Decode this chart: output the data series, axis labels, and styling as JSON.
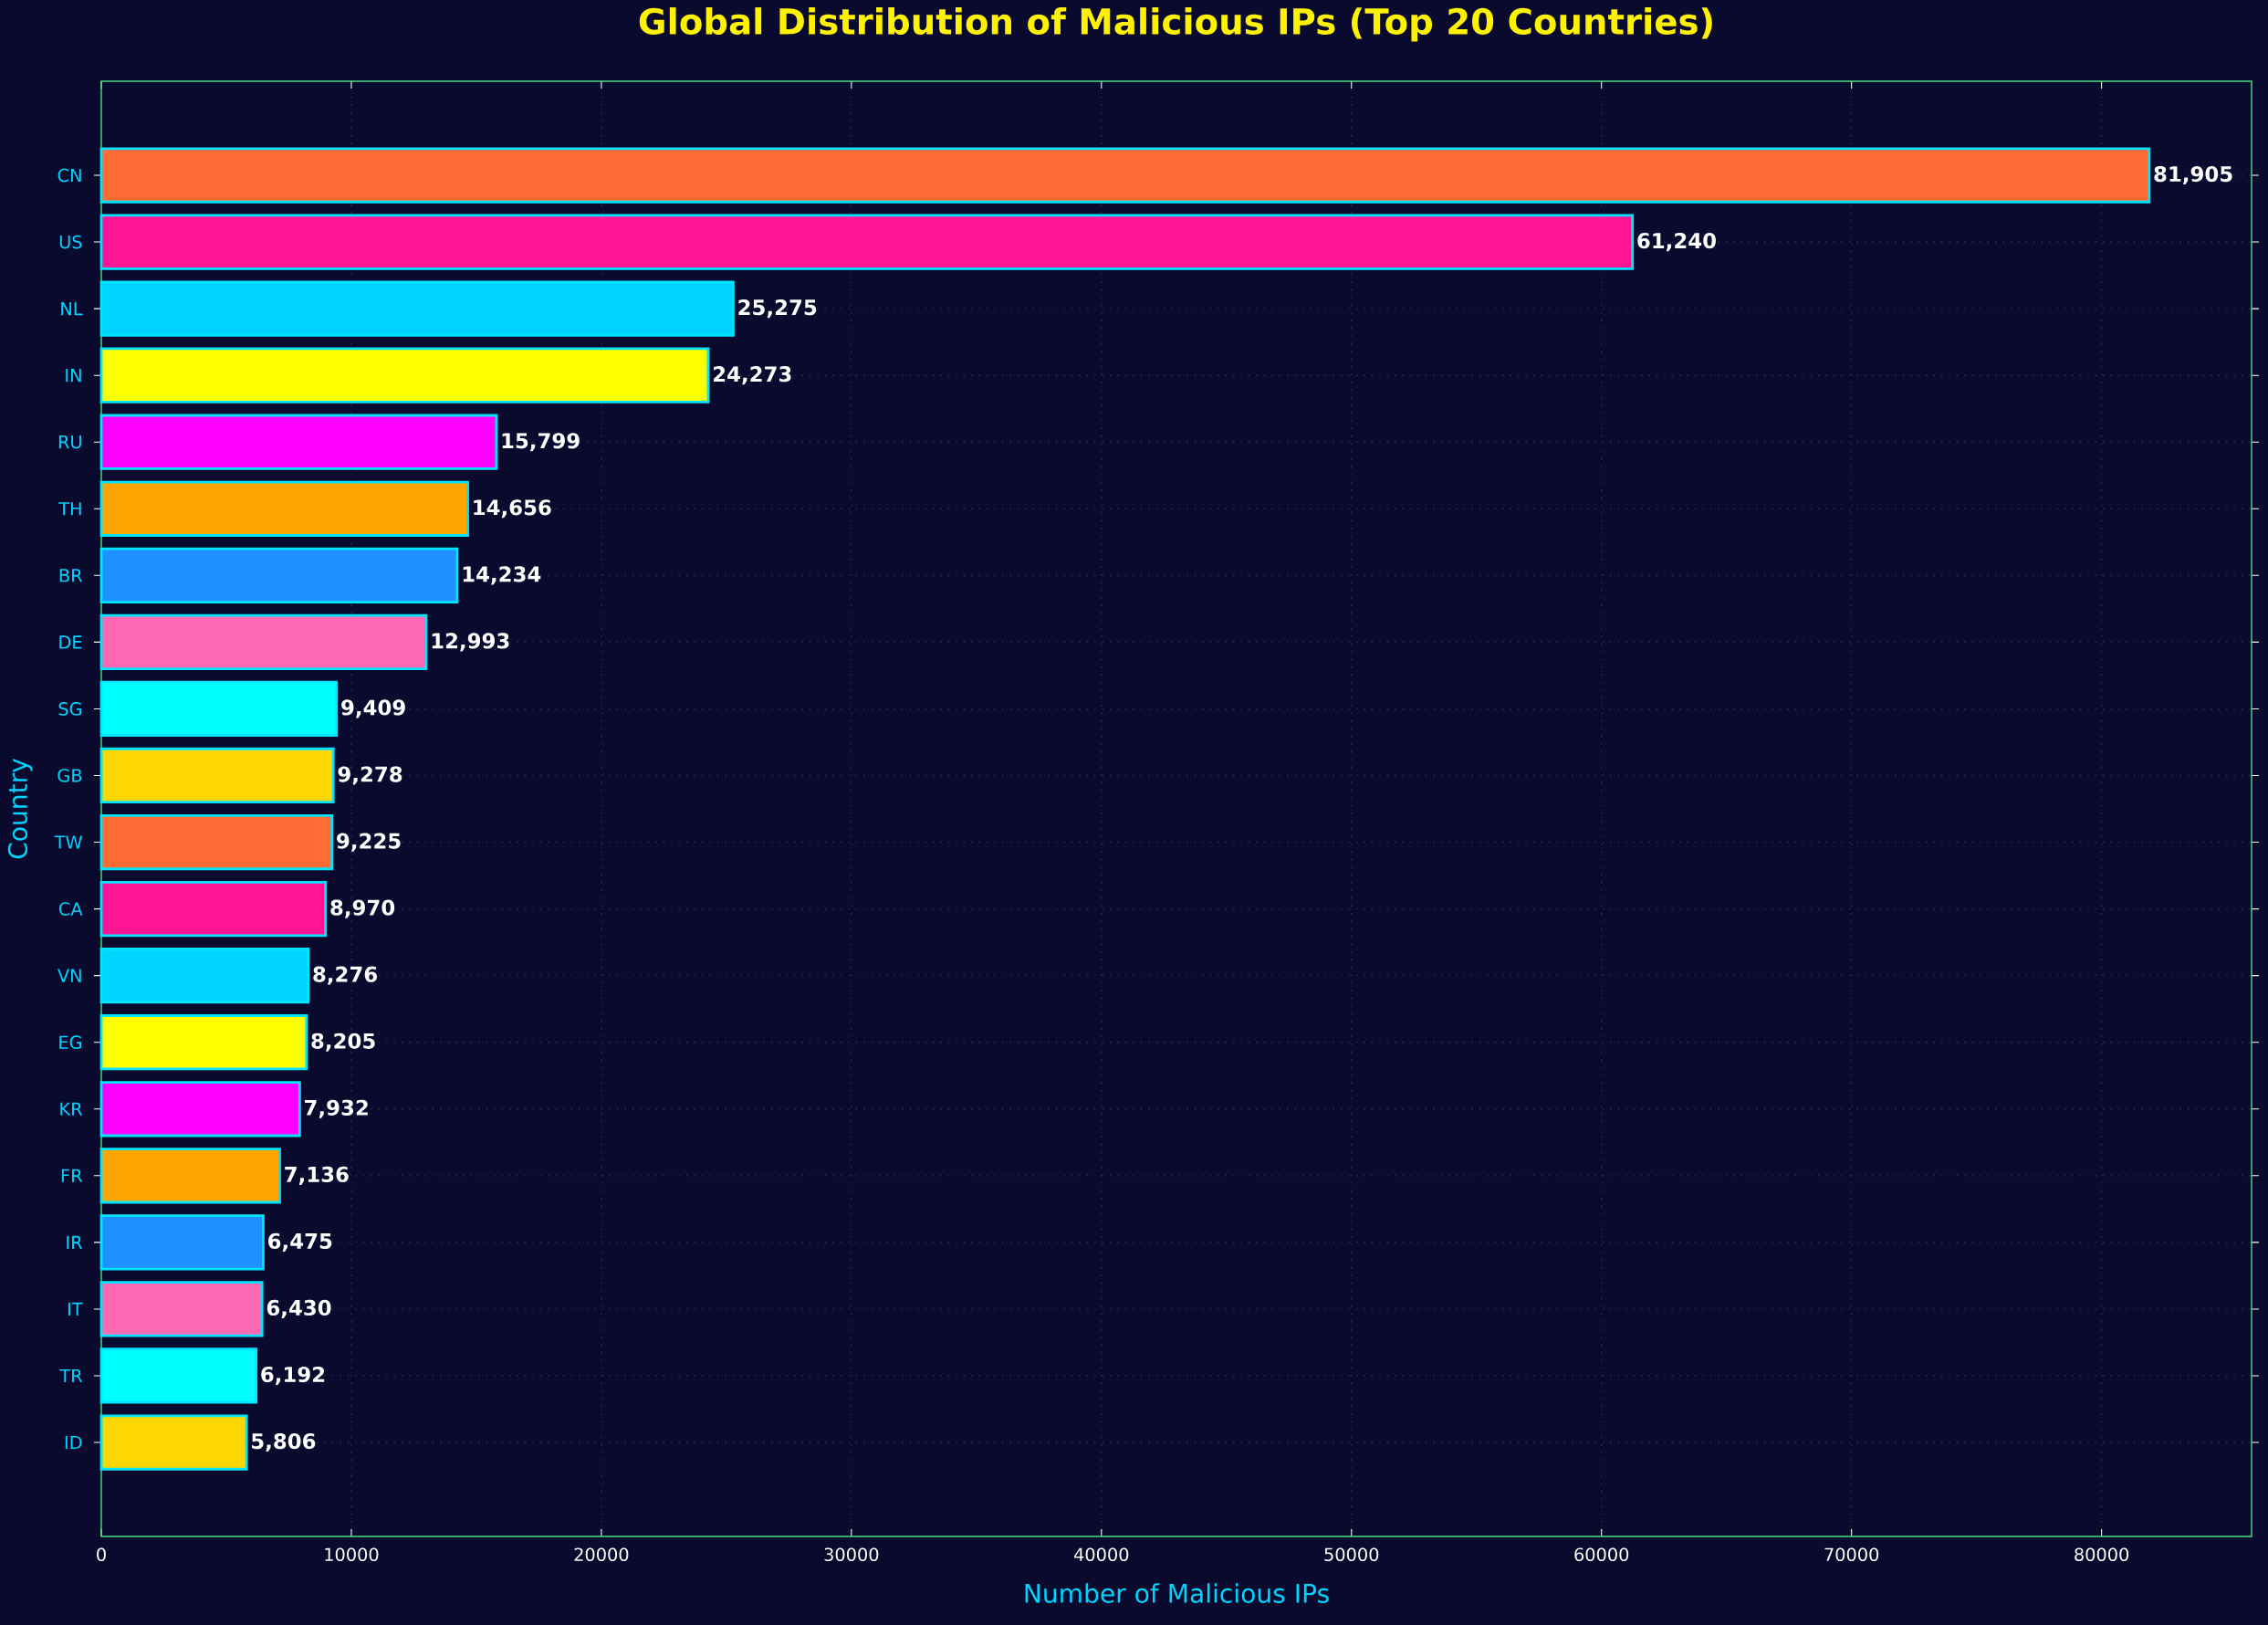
{
  "chart_data": {
    "type": "bar",
    "orientation": "horizontal",
    "title": "Global Distribution of Malicious IPs (Top 20 Countries)",
    "xlabel": "Number of Malicious IPs",
    "ylabel": "Country",
    "categories": [
      "CN",
      "US",
      "NL",
      "IN",
      "RU",
      "TH",
      "BR",
      "DE",
      "SG",
      "GB",
      "TW",
      "CA",
      "VN",
      "EG",
      "KR",
      "FR",
      "IR",
      "IT",
      "TR",
      "ID"
    ],
    "values": [
      81905,
      61240,
      25275,
      24273,
      15799,
      14656,
      14234,
      12993,
      9409,
      9278,
      9225,
      8970,
      8276,
      8205,
      7932,
      7136,
      6475,
      6430,
      6192,
      5806
    ],
    "value_labels": [
      "81,905",
      "61,240",
      "25,275",
      "24,273",
      "15,799",
      "14,656",
      "14,234",
      "12,993",
      "9,409",
      "9,278",
      "9,225",
      "8,970",
      "8,276",
      "8,205",
      "7,932",
      "7,136",
      "6,475",
      "6,430",
      "6,192",
      "5,806"
    ],
    "colors": [
      "#ff6b35",
      "#ff1493",
      "#00d4ff",
      "#ffff00",
      "#ff00ff",
      "#ffa500",
      "#1e90ff",
      "#ff69b4",
      "#00ffff",
      "#ffd700",
      "#ff6b35",
      "#ff1493",
      "#00d4ff",
      "#ffff00",
      "#ff00ff",
      "#ffa500",
      "#1e90ff",
      "#ff69b4",
      "#00ffff",
      "#ffd700"
    ],
    "xlim": [
      0,
      86000
    ],
    "xticks": [
      0,
      10000,
      20000,
      30000,
      40000,
      50000,
      60000,
      70000,
      80000
    ],
    "grid": true
  }
}
